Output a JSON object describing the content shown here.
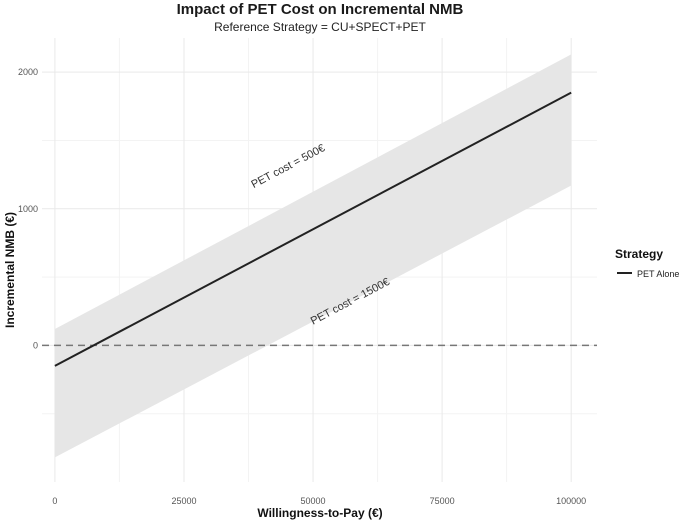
{
  "chart_data": {
    "type": "line",
    "title": "Impact of PET Cost on Incremental NMB",
    "subtitle": "Reference Strategy = CU+SPECT+PET",
    "xlabel": "Willingness-to-Pay (€)",
    "ylabel": "Incremental NMB (€)",
    "xlim": [
      -2500,
      105000
    ],
    "ylim": [
      -1000,
      2250
    ],
    "x_ticks": [
      0,
      25000,
      50000,
      75000,
      100000
    ],
    "y_ticks": [
      0,
      1000,
      2000
    ],
    "grid": true,
    "series": [
      {
        "name": "PET Alone",
        "color": "#222222",
        "x": [
          0,
          100000
        ],
        "y": [
          -150,
          1850
        ],
        "band_upper": [
          120,
          2130
        ],
        "band_lower": [
          -820,
          1170
        ]
      }
    ],
    "reference_line": {
      "y": 0,
      "style": "dashed",
      "color": "#777777"
    },
    "band_color": "#e6e6e6",
    "annotations": [
      {
        "text": "PET cost = 500€",
        "x": 38500,
        "y": 1150
      },
      {
        "text": "PET cost = 1500€",
        "x": 50000,
        "y": 150
      }
    ],
    "legend": {
      "title": "Strategy",
      "placement": "right"
    }
  }
}
